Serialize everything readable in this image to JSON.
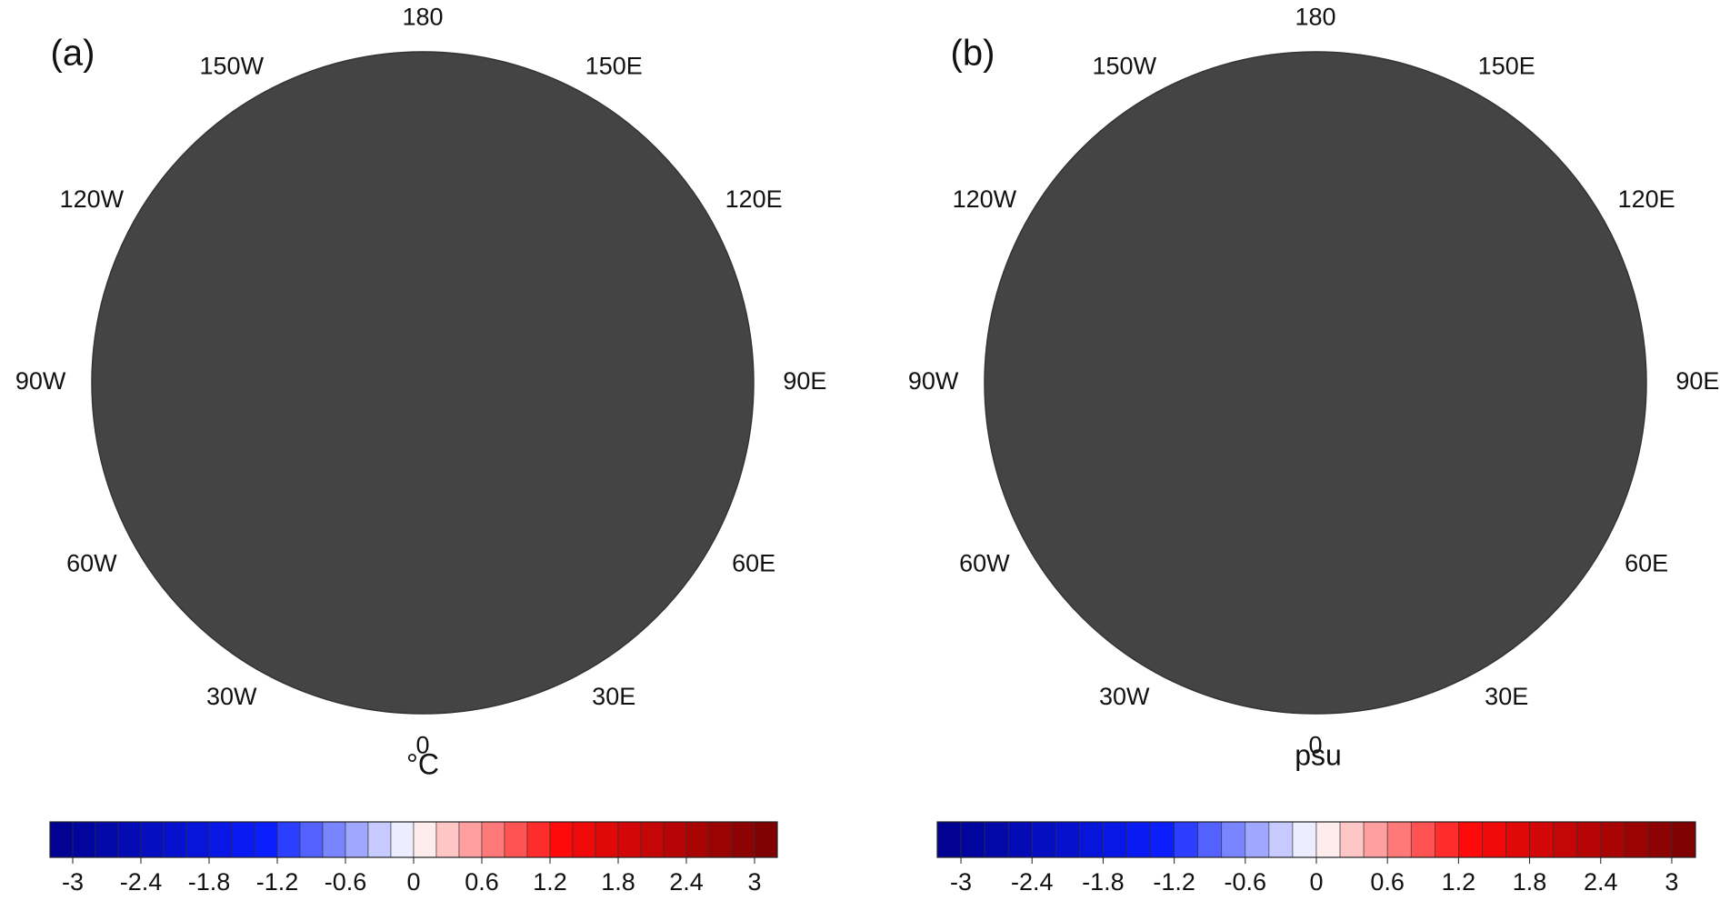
{
  "panels": [
    {
      "label": "(a)",
      "unit": "°C",
      "longitudes": [
        "180",
        "150E",
        "120E",
        "90E",
        "60E",
        "30E",
        "0",
        "30W",
        "60W",
        "90W",
        "120W",
        "150W"
      ],
      "colorbar": {
        "clim": [
          -3.2,
          3.2
        ],
        "ticks": [
          -3,
          -2.4,
          -1.8,
          -1.2,
          -0.6,
          0,
          0.6,
          1.2,
          1.8,
          2.4,
          3
        ]
      }
    },
    {
      "label": "(b)",
      "unit": "psu",
      "longitudes": [
        "180",
        "150E",
        "120E",
        "90E",
        "60E",
        "30E",
        "0",
        "30W",
        "60W",
        "90W",
        "120W",
        "150W"
      ],
      "colorbar": {
        "clim": [
          -3.2,
          3.2
        ],
        "ticks": [
          -3,
          -2.4,
          -1.8,
          -1.2,
          -0.6,
          0,
          0.6,
          1.2,
          1.8,
          2.4,
          3
        ]
      }
    }
  ]
}
